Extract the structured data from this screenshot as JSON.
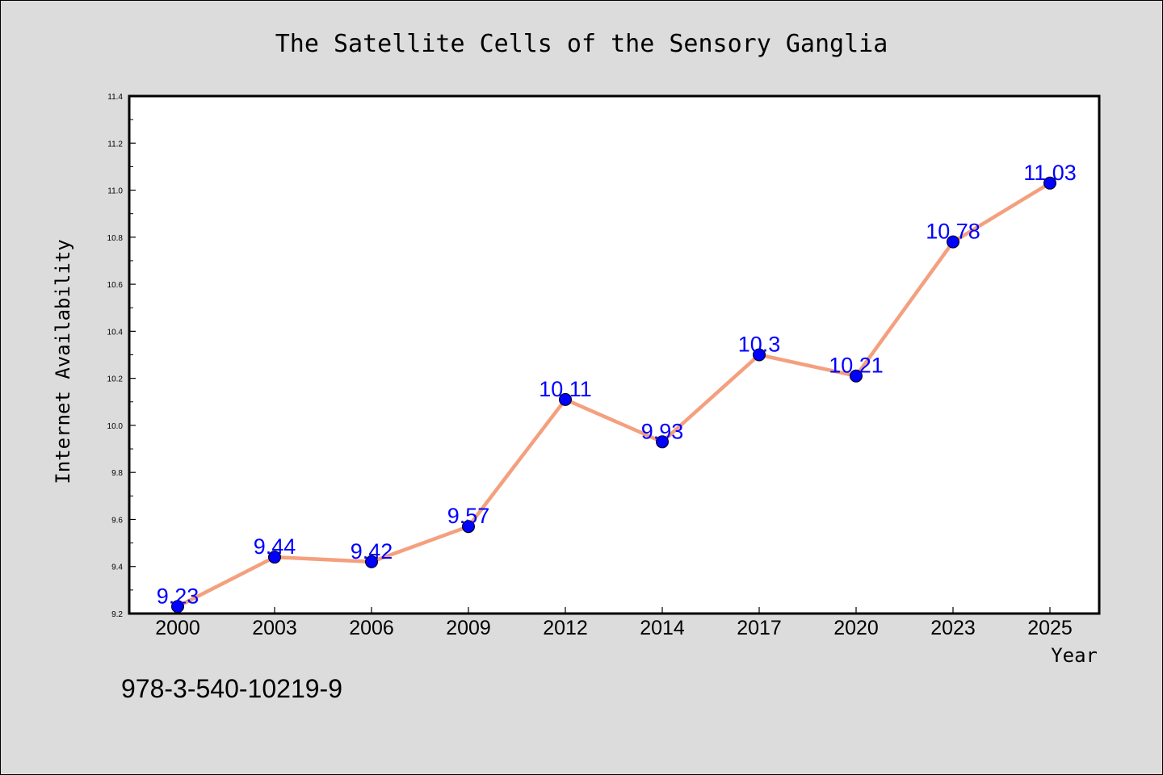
{
  "chart_data": {
    "type": "line",
    "title": "The Satellite Cells of the Sensory Ganglia",
    "xlabel": "Year",
    "ylabel": "Internet Availability",
    "categories": [
      "2000",
      "2003",
      "2006",
      "2009",
      "2012",
      "2014",
      "2017",
      "2020",
      "2023",
      "2025"
    ],
    "values": [
      9.23,
      9.44,
      9.42,
      9.57,
      10.11,
      9.93,
      10.3,
      10.21,
      10.78,
      11.03
    ],
    "data_labels": [
      "9.23",
      "9.44",
      "9.42",
      "9.57",
      "10.11",
      "9.93",
      "10.3",
      "10.21",
      "10.78",
      "11.03"
    ],
    "ylim": [
      9.2,
      11.4
    ],
    "yticks": [
      "9.2",
      "9.4",
      "9.6",
      "9.8",
      "10.0",
      "10.2",
      "10.4",
      "10.6",
      "10.8",
      "11.0",
      "11.2",
      "11.4"
    ],
    "grid": false,
    "legend": "none",
    "colors": {
      "line": "#f4a07e",
      "marker": "#0000ff",
      "data_label": "#0000ff",
      "plot_background": "#ffffff",
      "figure_background": "#dcdcdc"
    }
  },
  "footer_text": "978-3-540-10219-9"
}
